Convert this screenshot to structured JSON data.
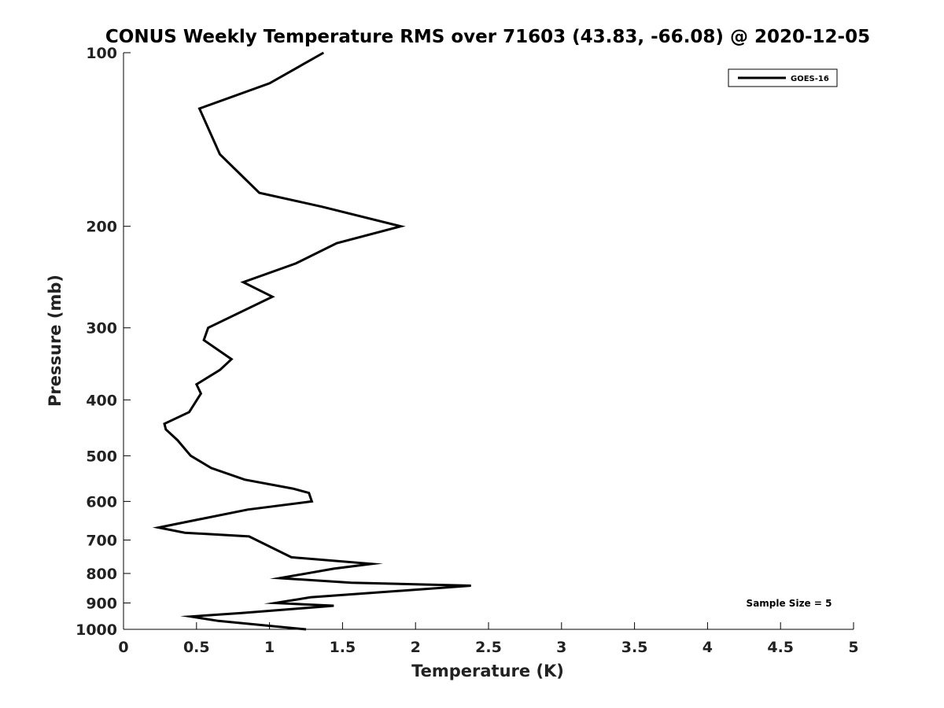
{
  "chart_data": {
    "type": "line",
    "title": "CONUS Weekly Temperature RMS over 71603 (43.83, -66.08) @ 2020-12-05",
    "xlabel": "Temperature (K)",
    "ylabel": "Pressure (mb)",
    "xlim": [
      0,
      5
    ],
    "ylim": [
      1000,
      100
    ],
    "y_scale": "log",
    "y_reversed": true,
    "grid": false,
    "legend_position": "top-right",
    "x_ticks": [
      "0",
      "0.5",
      "1",
      "1.5",
      "2",
      "2.5",
      "3",
      "3.5",
      "4",
      "4.5",
      "5"
    ],
    "y_ticks": [
      "100",
      "200",
      "300",
      "400",
      "500",
      "600",
      "700",
      "800",
      "900",
      "1000"
    ],
    "series": [
      {
        "name": "GOES-16",
        "color": "#000000",
        "points": [
          [
            1.37,
            100
          ],
          [
            1.0,
            113
          ],
          [
            0.52,
            125
          ],
          [
            0.66,
            150
          ],
          [
            0.93,
            175
          ],
          [
            1.36,
            185
          ],
          [
            1.9,
            200
          ],
          [
            1.46,
            214
          ],
          [
            1.18,
            232
          ],
          [
            0.82,
            250
          ],
          [
            1.02,
            265
          ],
          [
            0.58,
            300
          ],
          [
            0.55,
            315
          ],
          [
            0.74,
            340
          ],
          [
            0.66,
            355
          ],
          [
            0.5,
            376
          ],
          [
            0.53,
            390
          ],
          [
            0.45,
            420
          ],
          [
            0.28,
            440
          ],
          [
            0.29,
            450
          ],
          [
            0.37,
            470
          ],
          [
            0.46,
            500
          ],
          [
            0.6,
            525
          ],
          [
            0.83,
            550
          ],
          [
            1.16,
            570
          ],
          [
            1.27,
            580
          ],
          [
            1.29,
            600
          ],
          [
            0.85,
            620
          ],
          [
            0.24,
            666
          ],
          [
            0.42,
            680
          ],
          [
            0.86,
            690
          ],
          [
            1.15,
            750
          ],
          [
            1.7,
            770
          ],
          [
            1.44,
            785
          ],
          [
            1.07,
            815
          ],
          [
            1.56,
            830
          ],
          [
            2.38,
            840
          ],
          [
            1.28,
            880
          ],
          [
            1.04,
            900
          ],
          [
            1.44,
            910
          ],
          [
            0.81,
            937
          ],
          [
            0.46,
            950
          ],
          [
            0.65,
            967
          ],
          [
            1.25,
            1000
          ]
        ]
      }
    ],
    "annotation": "Sample Size = 5"
  }
}
